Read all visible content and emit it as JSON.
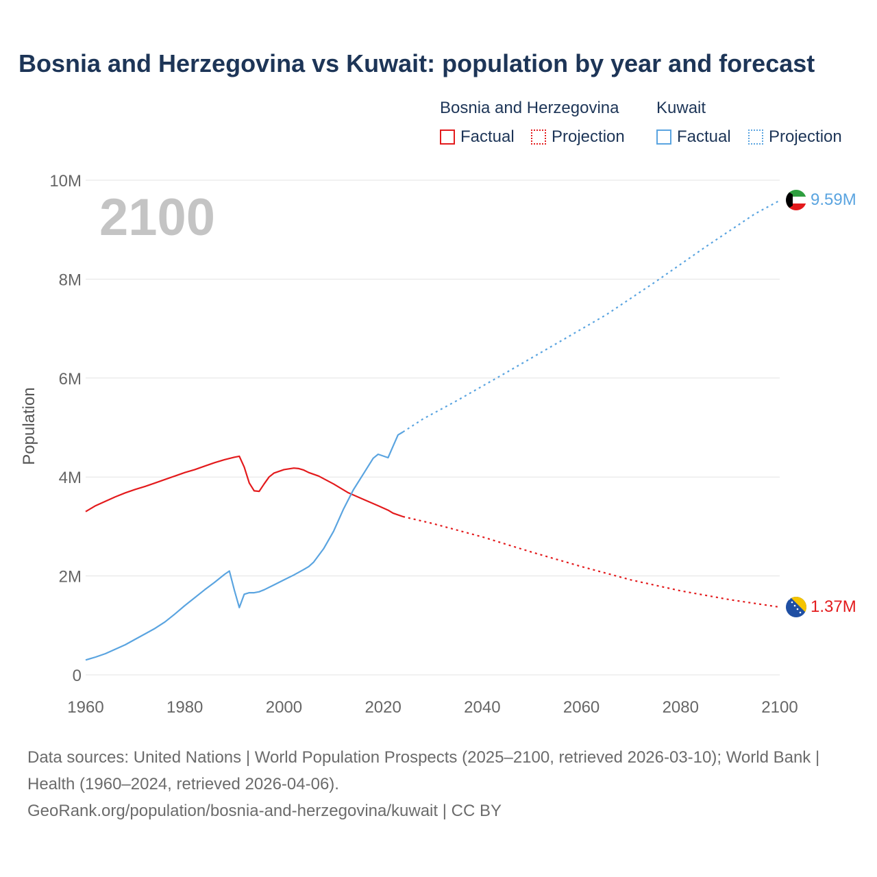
{
  "title": "Bosnia and Herzegovina vs Kuwait: population by year and forecast",
  "legend": {
    "groups": [
      {
        "name": "Bosnia and Herzegovina",
        "color": "#e31a1c",
        "factual_label": "Factual",
        "projection_label": "Projection"
      },
      {
        "name": "Kuwait",
        "color": "#5aa4e0",
        "factual_label": "Factual",
        "projection_label": "Projection"
      }
    ]
  },
  "year_watermark": "2100",
  "footer": {
    "sources": "Data sources: United Nations | World Population Prospects (2025–2100, retrieved 2026-03-10); World Bank | Health (1960–2024, retrieved 2026-04-06).",
    "link": "GeoRank.org/population/bosnia-and-herzegovina/kuwait | CC BY"
  },
  "chart_data": {
    "type": "line",
    "title": "Bosnia and Herzegovina vs Kuwait: population by year and forecast",
    "xlabel": "",
    "ylabel": "Population",
    "xlim": [
      1960,
      2100
    ],
    "ylim": [
      0,
      10000000
    ],
    "x_ticks": [
      1960,
      1980,
      2000,
      2020,
      2040,
      2060,
      2080,
      2100
    ],
    "x_tick_labels": [
      "1960",
      "1980",
      "2000",
      "2020",
      "2040",
      "2060",
      "2080",
      "2100"
    ],
    "y_ticks": [
      0,
      2000000,
      4000000,
      6000000,
      8000000,
      10000000
    ],
    "y_tick_labels": [
      "0",
      "2M",
      "4M",
      "6M",
      "8M",
      "10M"
    ],
    "grid": true,
    "series": [
      {
        "name": "Bosnia and Herzegovina",
        "color": "#e31a1c",
        "end_label": "1.37M",
        "flag": "bosnia-flag",
        "factual": [
          [
            1960,
            3300000
          ],
          [
            1962,
            3420000
          ],
          [
            1964,
            3510000
          ],
          [
            1966,
            3600000
          ],
          [
            1968,
            3680000
          ],
          [
            1970,
            3750000
          ],
          [
            1972,
            3810000
          ],
          [
            1974,
            3880000
          ],
          [
            1976,
            3950000
          ],
          [
            1978,
            4020000
          ],
          [
            1980,
            4090000
          ],
          [
            1982,
            4150000
          ],
          [
            1984,
            4220000
          ],
          [
            1986,
            4290000
          ],
          [
            1988,
            4350000
          ],
          [
            1990,
            4400000
          ],
          [
            1991,
            4420000
          ],
          [
            1992,
            4200000
          ],
          [
            1993,
            3880000
          ],
          [
            1994,
            3720000
          ],
          [
            1995,
            3710000
          ],
          [
            1996,
            3860000
          ],
          [
            1997,
            4000000
          ],
          [
            1998,
            4080000
          ],
          [
            2000,
            4150000
          ],
          [
            2002,
            4180000
          ],
          [
            2003,
            4170000
          ],
          [
            2004,
            4140000
          ],
          [
            2005,
            4090000
          ],
          [
            2007,
            4020000
          ],
          [
            2010,
            3860000
          ],
          [
            2013,
            3680000
          ],
          [
            2016,
            3550000
          ],
          [
            2019,
            3420000
          ],
          [
            2021,
            3330000
          ],
          [
            2022,
            3270000
          ],
          [
            2024,
            3200000
          ]
        ],
        "projection": [
          [
            2024,
            3200000
          ],
          [
            2030,
            3060000
          ],
          [
            2040,
            2790000
          ],
          [
            2050,
            2480000
          ],
          [
            2060,
            2190000
          ],
          [
            2070,
            1920000
          ],
          [
            2080,
            1700000
          ],
          [
            2090,
            1520000
          ],
          [
            2100,
            1370000
          ]
        ]
      },
      {
        "name": "Kuwait",
        "color": "#5aa4e0",
        "end_label": "9.59M",
        "flag": "kuwait-flag",
        "factual": [
          [
            1960,
            300000
          ],
          [
            1962,
            360000
          ],
          [
            1964,
            430000
          ],
          [
            1966,
            520000
          ],
          [
            1968,
            610000
          ],
          [
            1970,
            720000
          ],
          [
            1972,
            830000
          ],
          [
            1974,
            940000
          ],
          [
            1976,
            1070000
          ],
          [
            1978,
            1230000
          ],
          [
            1980,
            1400000
          ],
          [
            1982,
            1560000
          ],
          [
            1984,
            1720000
          ],
          [
            1986,
            1870000
          ],
          [
            1988,
            2030000
          ],
          [
            1989,
            2100000
          ],
          [
            1990,
            1710000
          ],
          [
            1991,
            1360000
          ],
          [
            1992,
            1630000
          ],
          [
            1993,
            1660000
          ],
          [
            1994,
            1660000
          ],
          [
            1995,
            1680000
          ],
          [
            1996,
            1720000
          ],
          [
            1998,
            1820000
          ],
          [
            2000,
            1920000
          ],
          [
            2002,
            2020000
          ],
          [
            2004,
            2130000
          ],
          [
            2005,
            2190000
          ],
          [
            2006,
            2280000
          ],
          [
            2008,
            2550000
          ],
          [
            2010,
            2900000
          ],
          [
            2012,
            3350000
          ],
          [
            2014,
            3740000
          ],
          [
            2016,
            4060000
          ],
          [
            2018,
            4380000
          ],
          [
            2019,
            4460000
          ],
          [
            2021,
            4390000
          ],
          [
            2022,
            4620000
          ],
          [
            2023,
            4850000
          ],
          [
            2024,
            4910000
          ]
        ],
        "projection": [
          [
            2024,
            4910000
          ],
          [
            2028,
            5170000
          ],
          [
            2035,
            5550000
          ],
          [
            2045,
            6120000
          ],
          [
            2055,
            6700000
          ],
          [
            2065,
            7280000
          ],
          [
            2075,
            7950000
          ],
          [
            2085,
            8650000
          ],
          [
            2095,
            9320000
          ],
          [
            2100,
            9590000
          ]
        ]
      }
    ]
  }
}
